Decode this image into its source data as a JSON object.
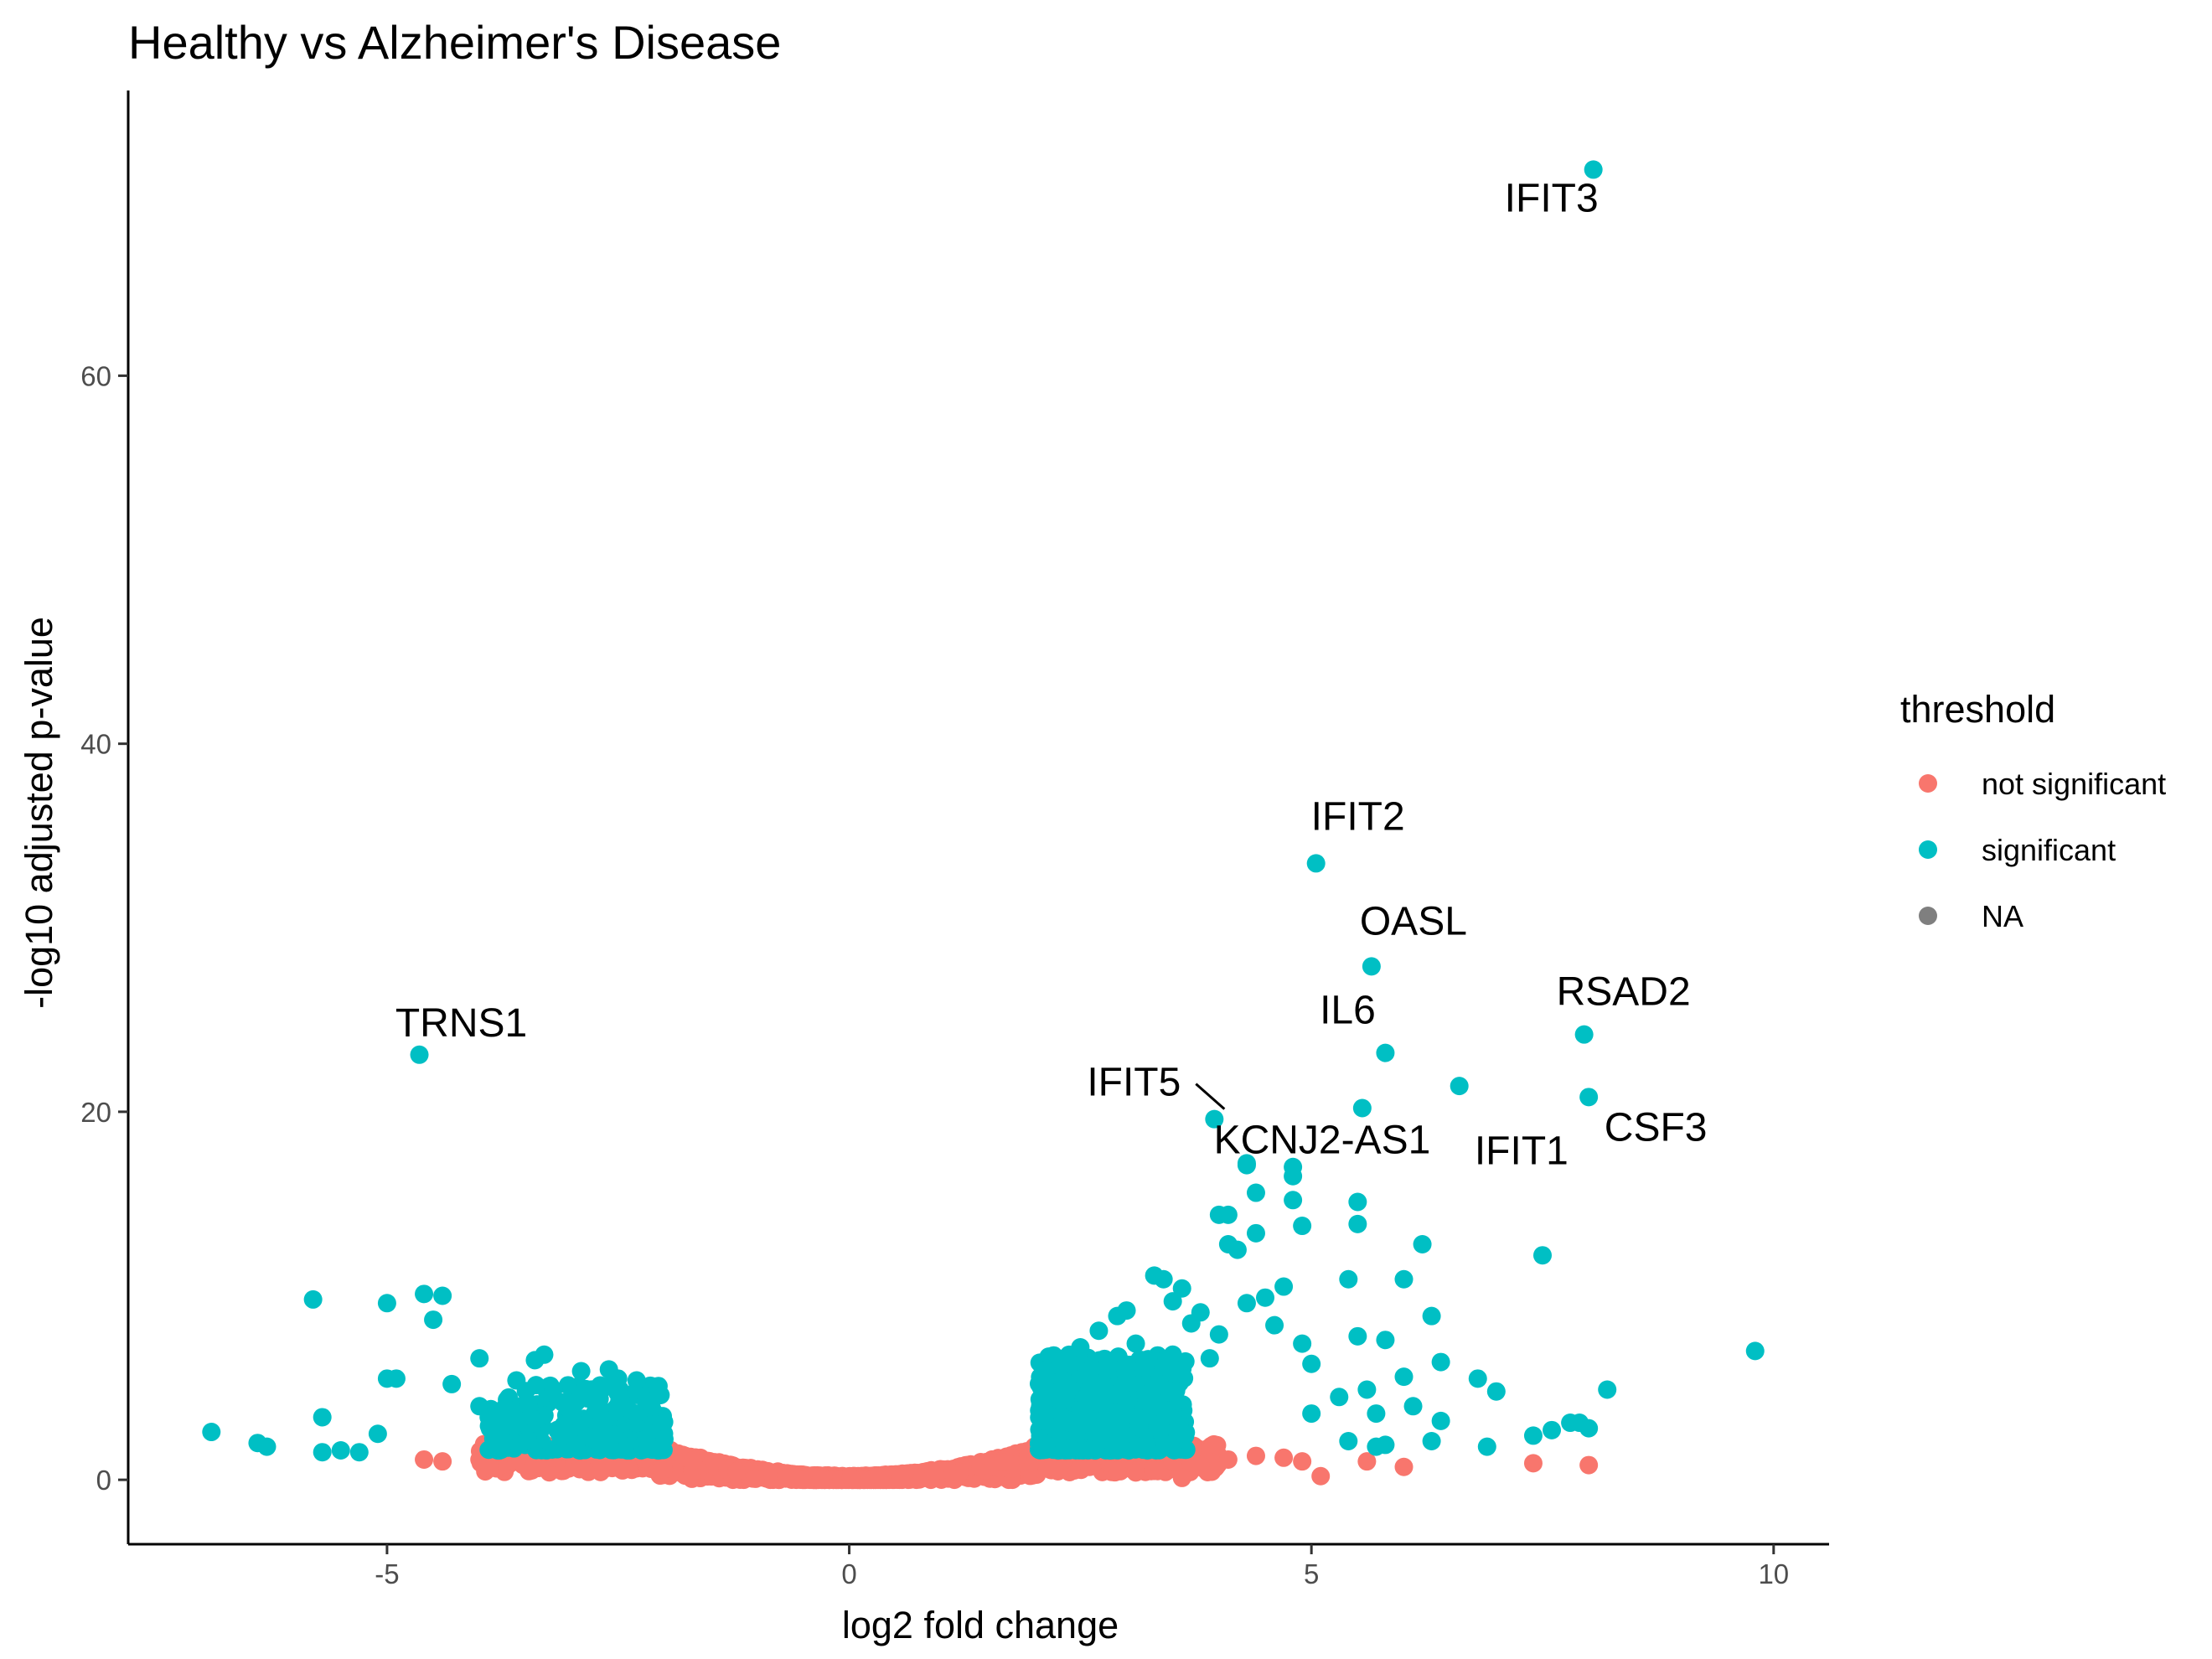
{
  "chart_data": {
    "type": "scatter",
    "title": "Healthy vs Alzheimer's Disease",
    "xlabel": "log2 fold change",
    "ylabel": "-log10 adjusted p-value",
    "xlim": [
      -7.8,
      10.6
    ],
    "ylim": [
      -3.5,
      75.5
    ],
    "xticks": [
      -5,
      0,
      5,
      10
    ],
    "yticks": [
      0,
      20,
      40,
      60
    ],
    "xtick_labels": [
      "-5",
      "0",
      "5",
      "10"
    ],
    "ytick_labels": [
      "0",
      "20",
      "40",
      "60"
    ],
    "grid": false,
    "legend": {
      "title": "threshold",
      "position": "right",
      "entries": [
        {
          "label": "not significant",
          "color": "#F8766D"
        },
        {
          "label": "significant",
          "color": "#00BFC4"
        },
        {
          "label": "NA",
          "color": "#7F7F7F"
        }
      ]
    },
    "series": [
      {
        "name": "not significant",
        "color": "#F8766D",
        "points": [
          [
            -4.6,
            1.1
          ],
          [
            -4.4,
            1.0
          ],
          [
            -4.0,
            1.1
          ],
          [
            -3.6,
            1.0
          ],
          [
            -3.2,
            1.2
          ],
          [
            -2.9,
            1.0
          ],
          [
            4.1,
            1.1
          ],
          [
            4.4,
            1.3
          ],
          [
            4.7,
            1.2
          ],
          [
            4.9,
            1.0
          ],
          [
            5.1,
            0.2
          ],
          [
            5.6,
            1.0
          ],
          [
            6.0,
            0.7
          ],
          [
            7.4,
            0.9
          ],
          [
            8.0,
            0.8
          ],
          [
            3.8,
            0.8
          ],
          [
            3.5,
            1.0
          ],
          [
            3.3,
            0.5
          ],
          [
            3.6,
            0.1
          ],
          [
            3.1,
            0.4
          ],
          [
            2.9,
            0.5
          ],
          [
            2.6,
            0.7
          ]
        ]
      },
      {
        "name": "significant",
        "color": "#00BFC4",
        "points": [
          [
            -6.9,
            2.6
          ],
          [
            -6.4,
            2.0
          ],
          [
            -6.3,
            1.8
          ],
          [
            -5.8,
            9.8
          ],
          [
            -5.7,
            1.5
          ],
          [
            -5.7,
            3.4
          ],
          [
            -5.5,
            1.6
          ],
          [
            -5.3,
            1.5
          ],
          [
            -5.1,
            2.5
          ],
          [
            -5.0,
            5.5
          ],
          [
            -5.0,
            9.6
          ],
          [
            -4.9,
            5.5
          ],
          [
            -4.6,
            10.1
          ],
          [
            -4.5,
            8.7
          ],
          [
            -4.4,
            10.0
          ],
          [
            -4.3,
            5.2
          ],
          [
            -4.0,
            6.6
          ],
          [
            -4.0,
            4.0
          ],
          [
            -3.9,
            3.4
          ],
          [
            -3.7,
            3.0
          ],
          [
            -3.6,
            5.4
          ],
          [
            -3.4,
            6.5
          ],
          [
            -3.3,
            6.8
          ],
          [
            -3.2,
            4.9
          ],
          [
            -3.1,
            4.2
          ],
          [
            -3.0,
            3.5
          ],
          [
            -2.9,
            5.9
          ],
          [
            -2.8,
            4.8
          ],
          [
            -2.7,
            4.4
          ],
          [
            -2.6,
            6.0
          ],
          [
            -2.5,
            5.5
          ],
          [
            -2.4,
            3.9
          ],
          [
            -2.3,
            5.4
          ],
          [
            -2.3,
            3.6
          ],
          [
            -2.2,
            4.3
          ],
          [
            -2.1,
            3.0
          ],
          [
            -2.1,
            2.5
          ],
          [
            -2.0,
            2.2
          ],
          [
            2.1,
            3.2
          ],
          [
            2.2,
            4.5
          ],
          [
            2.3,
            5.4
          ],
          [
            2.4,
            6.3
          ],
          [
            2.5,
            3.8
          ],
          [
            2.5,
            7.2
          ],
          [
            2.6,
            4.9
          ],
          [
            2.7,
            8.1
          ],
          [
            2.8,
            6.4
          ],
          [
            2.9,
            8.9
          ],
          [
            3.0,
            9.2
          ],
          [
            3.0,
            5.6
          ],
          [
            3.1,
            7.4
          ],
          [
            3.2,
            6.1
          ],
          [
            3.3,
            11.1
          ],
          [
            3.4,
            10.9
          ],
          [
            3.5,
            9.7
          ],
          [
            3.5,
            6.8
          ],
          [
            3.6,
            10.4
          ],
          [
            3.7,
            8.5
          ],
          [
            3.8,
            9.1
          ],
          [
            3.9,
            6.6
          ],
          [
            4.0,
            14.4
          ],
          [
            4.0,
            7.9
          ],
          [
            4.1,
            14.4
          ],
          [
            4.1,
            12.8
          ],
          [
            4.2,
            12.5
          ],
          [
            4.3,
            17.1
          ],
          [
            4.3,
            9.6
          ],
          [
            4.4,
            15.6
          ],
          [
            4.4,
            13.4
          ],
          [
            4.5,
            9.9
          ],
          [
            4.6,
            8.4
          ],
          [
            4.7,
            10.5
          ],
          [
            4.8,
            16.5
          ],
          [
            4.8,
            15.2
          ],
          [
            4.8,
            17.0
          ],
          [
            4.9,
            13.8
          ],
          [
            4.9,
            7.4
          ],
          [
            5.0,
            6.3
          ],
          [
            5.0,
            3.6
          ],
          [
            5.3,
            4.5
          ],
          [
            5.4,
            2.1
          ],
          [
            5.4,
            10.9
          ],
          [
            5.5,
            13.9
          ],
          [
            5.5,
            15.1
          ],
          [
            5.5,
            7.8
          ],
          [
            5.6,
            4.9
          ],
          [
            5.7,
            3.6
          ],
          [
            5.7,
            1.8
          ],
          [
            5.8,
            7.6
          ],
          [
            5.8,
            1.9
          ],
          [
            6.0,
            10.9
          ],
          [
            6.0,
            5.6
          ],
          [
            6.1,
            4.0
          ],
          [
            6.2,
            12.8
          ],
          [
            6.3,
            2.1
          ],
          [
            6.3,
            8.9
          ],
          [
            6.4,
            6.4
          ],
          [
            6.4,
            3.2
          ],
          [
            6.6,
            21.4
          ],
          [
            6.8,
            5.5
          ],
          [
            6.9,
            1.8
          ],
          [
            7.0,
            4.8
          ],
          [
            7.4,
            2.4
          ],
          [
            7.5,
            12.2
          ],
          [
            7.6,
            2.7
          ],
          [
            7.8,
            3.1
          ],
          [
            7.9,
            3.1
          ],
          [
            8.0,
            2.8
          ],
          [
            8.2,
            4.9
          ],
          [
            9.8,
            7.0
          ]
        ]
      }
    ],
    "labeled_points": [
      {
        "label": "IFIT3",
        "x": 8.05,
        "y": 71.2
      },
      {
        "label": "IFIT2",
        "x": 5.05,
        "y": 33.5
      },
      {
        "label": "OASL",
        "x": 5.65,
        "y": 27.9
      },
      {
        "label": "RSAD2",
        "x": 7.95,
        "y": 24.2
      },
      {
        "label": "TRNS1",
        "x": -4.65,
        "y": 23.1
      },
      {
        "label": "IL6",
        "x": 5.8,
        "y": 23.2
      },
      {
        "label": "IFIT1",
        "x": 5.55,
        "y": 20.2
      },
      {
        "label": "CSF3",
        "x": 8.0,
        "y": 20.8
      },
      {
        "label": "IFIT5",
        "x": 3.95,
        "y": 19.6
      },
      {
        "label": "KCNJ2-AS1",
        "x": 4.3,
        "y": 17.2
      }
    ]
  }
}
